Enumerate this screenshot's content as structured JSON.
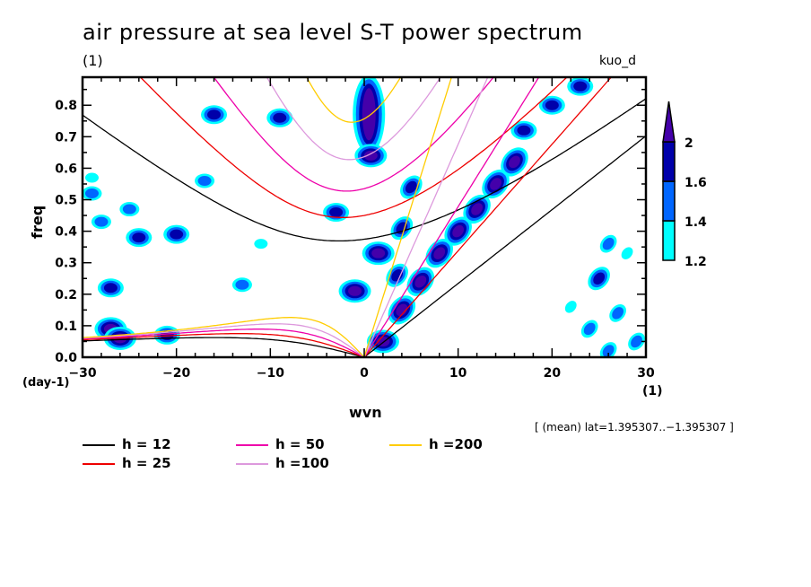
{
  "chart_data": {
    "type": "heatmap",
    "title": "air pressure at sea level S-T power spectrum",
    "subtitle_left": "(1)",
    "subtitle_right": "kuo_d",
    "xlabel": "wvn",
    "xunits": "(1)",
    "ylabel": "freq",
    "yunits": "(day-1)",
    "xlim": [
      -30,
      30
    ],
    "ylim": [
      0,
      0.889
    ],
    "xticks": [
      -30,
      -20,
      -10,
      0,
      10,
      20,
      30
    ],
    "xtick_labels": [
      "−30",
      "−20",
      "−10",
      "0",
      "10",
      "20",
      "30"
    ],
    "yticks": [
      0.0,
      0.1,
      0.2,
      0.3,
      0.4,
      0.5,
      0.6,
      0.7,
      0.8
    ],
    "ytick_labels": [
      "0.0",
      "0.1",
      "0.2",
      "0.3",
      "0.4",
      "0.5",
      "0.6",
      "0.7",
      "0.8"
    ],
    "colorbar": {
      "levels": [
        1.2,
        1.4,
        1.6,
        2
      ],
      "level_labels": [
        "1.2",
        "1.4",
        "1.6",
        "2"
      ],
      "colors": [
        "#00ffff",
        "#0066ff",
        "#0000aa",
        "#4400aa"
      ],
      "extend": "max"
    },
    "dispersion_curves": [
      {
        "name": "h = 12",
        "equivalent_depth": 12,
        "color": "#000000"
      },
      {
        "name": "h = 25",
        "equivalent_depth": 25,
        "color": "#ee0000"
      },
      {
        "name": "h = 50",
        "equivalent_depth": 50,
        "color": "#ee00aa"
      },
      {
        "name": "h =100",
        "equivalent_depth": 100,
        "color": "#dd99dd"
      },
      {
        "name": "h =200",
        "equivalent_depth": 200,
        "color": "#ffcc00"
      }
    ],
    "contour_regions": [
      {
        "x": 0.5,
        "y": 0.76,
        "level": 2,
        "note": "vertical blob near wvn 0-1, freq 0.65-0.88"
      },
      {
        "x": 0.7,
        "y": 0.64,
        "level": 2
      },
      {
        "x": -1,
        "y": 0.21,
        "level": 2
      },
      {
        "x": 1.5,
        "y": 0.33,
        "level": 2
      },
      {
        "x": -27,
        "y": 0.09,
        "level": 2
      },
      {
        "x": -26,
        "y": 0.06,
        "level": 2
      },
      {
        "x": 2,
        "y": 0.05,
        "level": 2
      },
      {
        "x": 4,
        "y": 0.15,
        "level": 2
      },
      {
        "x": 6,
        "y": 0.24,
        "level": 2
      },
      {
        "x": 8,
        "y": 0.33,
        "level": 2
      },
      {
        "x": 10,
        "y": 0.4,
        "level": 2
      },
      {
        "x": 12,
        "y": 0.47,
        "level": 2
      },
      {
        "x": 14,
        "y": 0.55,
        "level": 2
      },
      {
        "x": 16,
        "y": 0.62,
        "level": 2
      },
      {
        "x": 17,
        "y": 0.72,
        "level": 1.6
      },
      {
        "x": 20,
        "y": 0.8,
        "level": 1.6
      },
      {
        "x": 23,
        "y": 0.86,
        "level": 1.6
      },
      {
        "x": 5,
        "y": 0.54,
        "level": 1.6
      },
      {
        "x": 4,
        "y": 0.41,
        "level": 1.6
      },
      {
        "x": 3.5,
        "y": 0.26,
        "level": 1.6
      },
      {
        "x": -9,
        "y": 0.76,
        "level": 1.6
      },
      {
        "x": -3,
        "y": 0.46,
        "level": 1.6
      },
      {
        "x": -20,
        "y": 0.39,
        "level": 1.6
      },
      {
        "x": -16,
        "y": 0.77,
        "level": 1.6
      },
      {
        "x": -27,
        "y": 0.22,
        "level": 1.6
      },
      {
        "x": -21,
        "y": 0.07,
        "level": 1.6
      },
      {
        "x": -24,
        "y": 0.38,
        "level": 1.6
      },
      {
        "x": -17,
        "y": 0.56,
        "level": 1.4
      },
      {
        "x": -28,
        "y": 0.43,
        "level": 1.4
      },
      {
        "x": -25,
        "y": 0.47,
        "level": 1.4
      },
      {
        "x": -29,
        "y": 0.52,
        "level": 1.4
      },
      {
        "x": -29,
        "y": 0.57,
        "level": 1.2
      },
      {
        "x": -13,
        "y": 0.23,
        "level": 1.4
      },
      {
        "x": -11,
        "y": 0.36,
        "level": 1.2
      },
      {
        "x": 25,
        "y": 0.25,
        "level": 1.6
      },
      {
        "x": 24,
        "y": 0.09,
        "level": 1.4
      },
      {
        "x": 22,
        "y": 0.16,
        "level": 1.2
      },
      {
        "x": 28,
        "y": 0.33,
        "level": 1.2
      },
      {
        "x": 26,
        "y": 0.36,
        "level": 1.4
      },
      {
        "x": 29,
        "y": 0.05,
        "level": 1.4
      },
      {
        "x": 26,
        "y": 0.02,
        "level": 1.4
      },
      {
        "x": 27,
        "y": 0.14,
        "level": 1.4
      }
    ]
  },
  "legend": {
    "items": [
      {
        "label": "h = 12",
        "color": "#000000"
      },
      {
        "label": "h = 25",
        "color": "#ee0000"
      },
      {
        "label": "h = 50",
        "color": "#ee00aa"
      },
      {
        "label": "h =100",
        "color": "#dd99dd"
      },
      {
        "label": "h =200",
        "color": "#ffcc00"
      }
    ]
  },
  "meta_text": "[ (mean) lat=1.395307..−1.395307 ]"
}
